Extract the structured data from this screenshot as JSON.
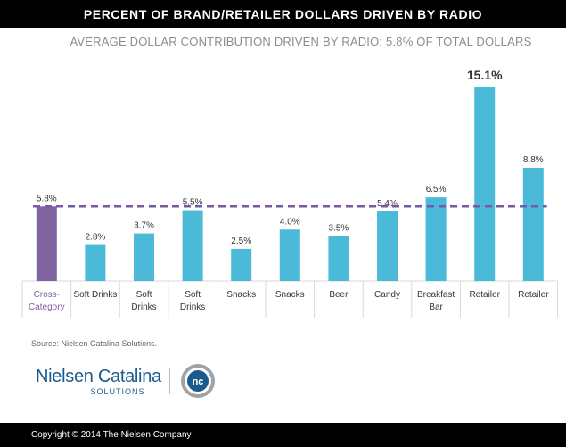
{
  "header": {
    "title": "PERCENT OF BRAND/RETAILER DOLLARS DRIVEN BY RADIO"
  },
  "chart_data": {
    "type": "bar",
    "title": "PERCENT OF BRAND/RETAILER DOLLARS DRIVEN BY RADIO",
    "subtitle": "AVERAGE DOLLAR CONTRIBUTION DRIVEN BY RADIO: 5.8% OF TOTAL DOLLARS",
    "xlabel": "",
    "ylabel": "",
    "ylim": [
      0,
      15.1
    ],
    "grid": false,
    "categories": [
      [
        "Cross-",
        "Category"
      ],
      [
        "Soft Drinks"
      ],
      [
        "Soft",
        "Drinks"
      ],
      [
        "Soft",
        "Drinks"
      ],
      [
        "Snacks"
      ],
      [
        "Snacks"
      ],
      [
        "Beer"
      ],
      [
        "Candy"
      ],
      [
        "Breakfast",
        "Bar"
      ],
      [
        "Retailer"
      ],
      [
        "Retailer"
      ]
    ],
    "values": [
      5.8,
      2.8,
      3.7,
      5.5,
      2.5,
      4.0,
      3.5,
      5.4,
      6.5,
      15.1,
      8.8
    ],
    "data_labels": [
      "5.8%",
      "2.8%",
      "3.7%",
      "5.5%",
      "2.5%",
      "4.0%",
      "3.5%",
      "5.4%",
      "6.5%",
      "15.1%",
      "8.8%"
    ],
    "average_line": {
      "value": 5.8
    },
    "colors": {
      "highlight": "#8064a2",
      "bars": "#4bbad9",
      "average_line": "#7a58a8",
      "highlight_label": "#8064a2"
    }
  },
  "source": "Source: Nielsen Catalina Solutions.",
  "logo": {
    "wordmark": "Nielsen Catalina",
    "sub": "SOLUTIONS",
    "mark_text": "nc",
    "colors": {
      "primary": "#1a5b8e",
      "ring": "#9ea3a8"
    }
  },
  "footer": {
    "copyright": "Copyright © 2014 The Nielsen Company"
  }
}
